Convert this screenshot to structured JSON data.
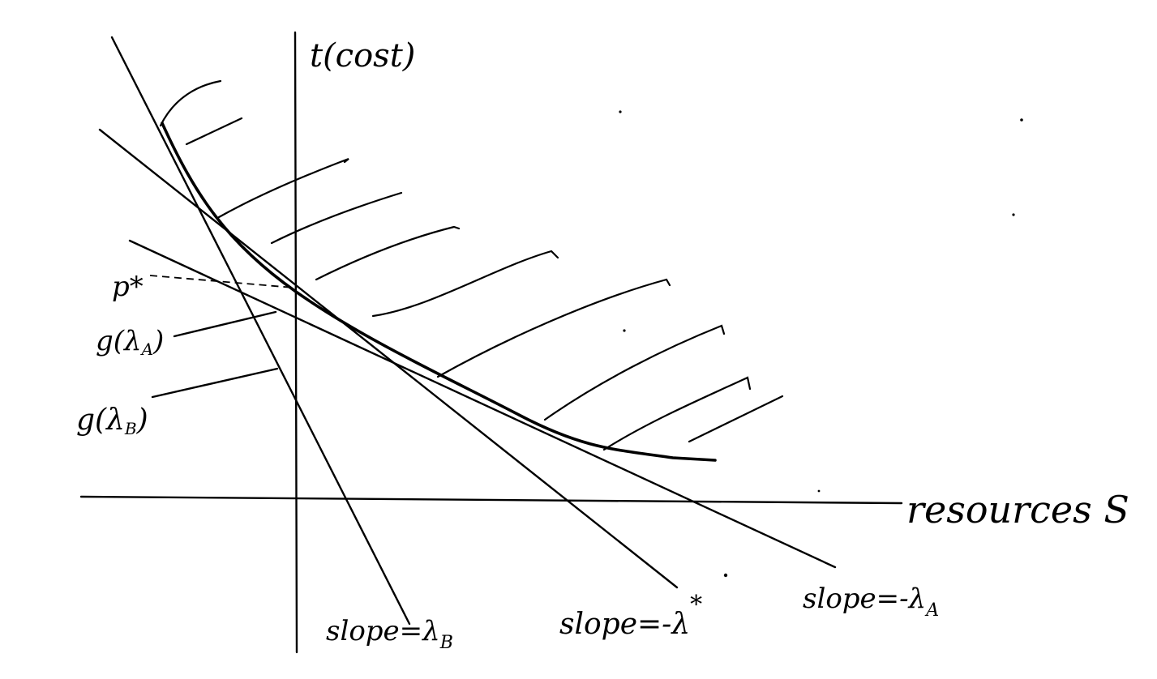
{
  "diagram": {
    "axes": {
      "y_label": "t(cost)",
      "x_label": "resources S"
    },
    "labels": {
      "p_star": "p*",
      "g_lambda_a": "g(λ",
      "g_lambda_a_sub": "A",
      "g_lambda_b": "g(λ",
      "g_lambda_b_sub": "B",
      "close_paren": ")",
      "slope_b": "slope=λ",
      "slope_b_sub": "B",
      "slope_star": "slope=-λ",
      "slope_star_sup": "*",
      "slope_a": "slope=-λ",
      "slope_a_sub": "A"
    },
    "colors": {
      "ink": "#000000",
      "paper": "#ffffff"
    }
  }
}
